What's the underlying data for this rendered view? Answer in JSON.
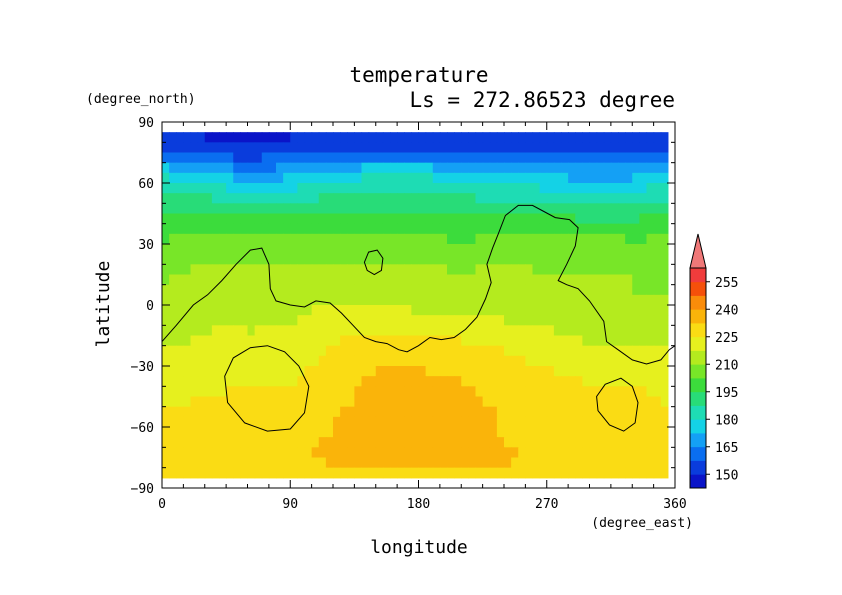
{
  "chart_data": {
    "type": "heatmap",
    "title": "temperature",
    "subtitle": "Ls = 272.86523 degree",
    "xlabel": "longitude",
    "ylabel": "latitude",
    "xunit": "(degree_east)",
    "yunit": "(degree_north)",
    "xlim": [
      0,
      360
    ],
    "ylim": [
      -90,
      90
    ],
    "xticks": [
      0,
      90,
      180,
      270,
      360
    ],
    "yticks": [
      90,
      60,
      30,
      0,
      -30,
      -60,
      -90
    ],
    "xtick_labels": [
      "0",
      "90",
      "180",
      "270",
      "360"
    ],
    "ytick_labels": [
      "90",
      "60",
      "30",
      "0",
      "−30",
      "−60",
      "−90"
    ],
    "colorbar": {
      "levels": [
        150,
        165,
        180,
        195,
        210,
        225,
        240,
        255
      ],
      "level_labels": [
        "150",
        "165",
        "180",
        "195",
        "210",
        "225",
        "240",
        "255"
      ],
      "min": 142.5,
      "max": 262.5,
      "step": 7.5,
      "extend": "max",
      "colors": [
        "#0a14c8",
        "#0a3cdc",
        "#0a6ef0",
        "#14a0f5",
        "#14d2e6",
        "#1edcb4",
        "#28dc78",
        "#3cdc3c",
        "#78e628",
        "#b4eb1e",
        "#e6f01e",
        "#fadc14",
        "#fab40a",
        "#fa8c0a",
        "#f5500a",
        "#f03c3c",
        "#f07878"
      ]
    },
    "z_rows": [
      {
        "lat": 85,
        "values": [
          148,
          148,
          148,
          148,
          148,
          148,
          148,
          148,
          148,
          148,
          148,
          148,
          148
        ]
      },
      {
        "lat": 75,
        "values": [
          158,
          156,
          153,
          156,
          158,
          158,
          158,
          156,
          156,
          156,
          156,
          156,
          160
        ]
      },
      {
        "lat": 65,
        "values": [
          178,
          174,
          166,
          170,
          176,
          178,
          178,
          176,
          174,
          172,
          168,
          170,
          178
        ]
      },
      {
        "lat": 55,
        "values": [
          188,
          186,
          180,
          182,
          186,
          188,
          188,
          186,
          184,
          182,
          178,
          180,
          186
        ]
      },
      {
        "lat": 45,
        "values": [
          196,
          196,
          194,
          194,
          196,
          196,
          196,
          194,
          194,
          194,
          192,
          192,
          196
        ]
      },
      {
        "lat": 35,
        "values": [
          201,
          202,
          202,
          202,
          202,
          202,
          202,
          201,
          202,
          202,
          202,
          201,
          202
        ]
      },
      {
        "lat": 25,
        "values": [
          206,
          207,
          206,
          206,
          207,
          207,
          206,
          206,
          206,
          206,
          207,
          206,
          206
        ]
      },
      {
        "lat": 15,
        "values": [
          209,
          212,
          213,
          212,
          213,
          213,
          212,
          211,
          212,
          211,
          211,
          210,
          209
        ]
      },
      {
        "lat": 5,
        "values": [
          210,
          214,
          215,
          214,
          216,
          216,
          214,
          213,
          213,
          212,
          212,
          210,
          210
        ]
      },
      {
        "lat": -5,
        "values": [
          210,
          216,
          216,
          216,
          220,
          220,
          218,
          216,
          216,
          214,
          212,
          210,
          210
        ]
      },
      {
        "lat": -15,
        "values": [
          213,
          218,
          218,
          218,
          224,
          226,
          226,
          224,
          222,
          219,
          216,
          214,
          214
        ]
      },
      {
        "lat": -25,
        "values": [
          219,
          222,
          222,
          222,
          226,
          229,
          229,
          228,
          226,
          223,
          221,
          221,
          219
        ]
      },
      {
        "lat": -35,
        "values": [
          223,
          223,
          224,
          224,
          228,
          234,
          234,
          232,
          228,
          226,
          224,
          224,
          223
        ]
      },
      {
        "lat": -45,
        "values": [
          224,
          225,
          226,
          226,
          230,
          235,
          236,
          235,
          230,
          228,
          226,
          226,
          224
        ]
      },
      {
        "lat": -55,
        "values": [
          226,
          226,
          226,
          228,
          232,
          236,
          237,
          236,
          232,
          229,
          228,
          227,
          226
        ]
      },
      {
        "lat": -65,
        "values": [
          229,
          229,
          229,
          230,
          233,
          236,
          237,
          236,
          232,
          230,
          229,
          229,
          229
        ]
      },
      {
        "lat": -75,
        "values": [
          229,
          229,
          229,
          231,
          234,
          236,
          237,
          236,
          234,
          230,
          229,
          229,
          229
        ]
      },
      {
        "lat": -85,
        "values": [
          229,
          229,
          229,
          229,
          230,
          231,
          231,
          231,
          230,
          229,
          229,
          229,
          229
        ]
      }
    ],
    "z_lons": [
      0,
      30,
      60,
      90,
      120,
      150,
      180,
      210,
      240,
      270,
      300,
      330,
      360
    ],
    "contours": [
      {
        "name": "equatorial-contour",
        "closed": false,
        "points": [
          [
            0,
            -18
          ],
          [
            10,
            -10
          ],
          [
            22,
            0
          ],
          [
            32,
            5
          ],
          [
            42,
            12
          ],
          [
            52,
            20
          ],
          [
            62,
            27
          ],
          [
            70,
            28
          ],
          [
            75,
            20
          ],
          [
            76,
            8
          ],
          [
            80,
            2
          ],
          [
            90,
            0
          ],
          [
            100,
            -1
          ],
          [
            108,
            2
          ],
          [
            118,
            1
          ],
          [
            126,
            -4
          ],
          [
            134,
            -10
          ],
          [
            142,
            -16
          ],
          [
            150,
            -18
          ],
          [
            158,
            -19
          ],
          [
            166,
            -22
          ],
          [
            172,
            -23
          ],
          [
            180,
            -20
          ],
          [
            188,
            -16
          ],
          [
            196,
            -17
          ],
          [
            205,
            -16
          ],
          [
            213,
            -12
          ],
          [
            221,
            -6
          ],
          [
            227,
            3
          ],
          [
            231,
            11
          ],
          [
            228,
            20
          ],
          [
            232,
            28
          ],
          [
            236,
            35
          ],
          [
            241,
            44
          ],
          [
            250,
            49
          ],
          [
            260,
            49
          ],
          [
            268,
            46
          ],
          [
            276,
            43
          ],
          [
            286,
            42
          ],
          [
            292,
            38
          ],
          [
            290,
            29
          ],
          [
            284,
            20
          ],
          [
            278,
            12
          ],
          [
            284,
            10
          ],
          [
            292,
            8
          ],
          [
            300,
            2
          ],
          [
            310,
            -8
          ],
          [
            312,
            -18
          ],
          [
            320,
            -22
          ],
          [
            330,
            -27
          ],
          [
            340,
            -29
          ],
          [
            350,
            -27
          ],
          [
            356,
            -22
          ],
          [
            360,
            -20
          ]
        ]
      },
      {
        "name": "small-north-contour",
        "closed": true,
        "points": [
          [
            142,
            21
          ],
          [
            145,
            26
          ],
          [
            151,
            27
          ],
          [
            155,
            23
          ],
          [
            154,
            17
          ],
          [
            149,
            15
          ],
          [
            144,
            17
          ]
        ]
      },
      {
        "name": "west-south-contour",
        "closed": true,
        "points": [
          [
            74,
            -20
          ],
          [
            86,
            -23
          ],
          [
            96,
            -30
          ],
          [
            103,
            -40
          ],
          [
            100,
            -53
          ],
          [
            90,
            -61
          ],
          [
            74,
            -62
          ],
          [
            58,
            -58
          ],
          [
            46,
            -48
          ],
          [
            44,
            -35
          ],
          [
            50,
            -26
          ],
          [
            62,
            -21
          ]
        ]
      },
      {
        "name": "east-south-contour",
        "closed": true,
        "points": [
          [
            322,
            -36
          ],
          [
            330,
            -40
          ],
          [
            334,
            -48
          ],
          [
            332,
            -58
          ],
          [
            324,
            -62
          ],
          [
            314,
            -59
          ],
          [
            306,
            -52
          ],
          [
            305,
            -45
          ],
          [
            311,
            -39
          ]
        ]
      }
    ]
  }
}
